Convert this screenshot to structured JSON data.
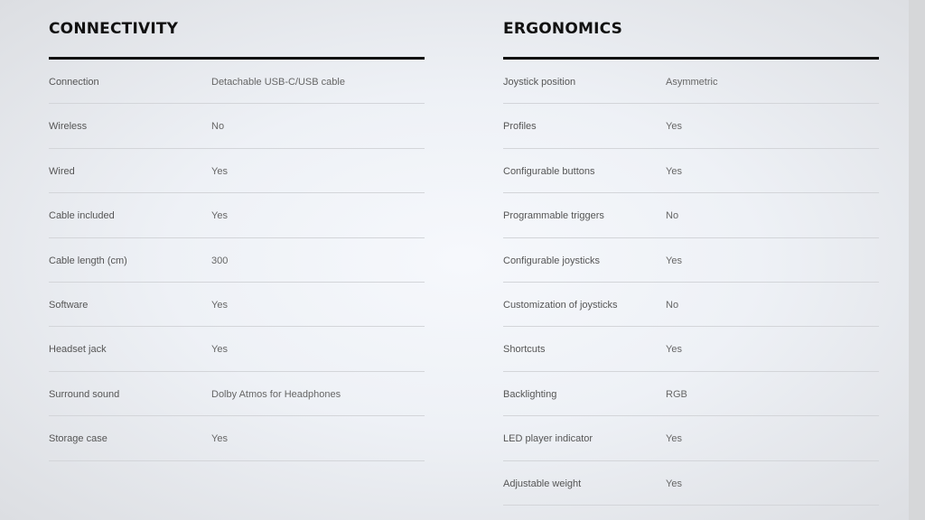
{
  "sections": [
    {
      "title": "CONNECTIVITY",
      "rows": [
        {
          "label": "Connection",
          "value": "Detachable USB-C/USB cable"
        },
        {
          "label": "Wireless",
          "value": "No"
        },
        {
          "label": "Wired",
          "value": "Yes"
        },
        {
          "label": "Cable included",
          "value": "Yes"
        },
        {
          "label": "Cable length (cm)",
          "value": "300"
        },
        {
          "label": "Software",
          "value": "Yes"
        },
        {
          "label": "Headset jack",
          "value": "Yes"
        },
        {
          "label": "Surround sound",
          "value": "Dolby Atmos for Headphones"
        },
        {
          "label": "Storage case",
          "value": "Yes"
        }
      ]
    },
    {
      "title": "ERGONOMICS",
      "rows": [
        {
          "label": "Joystick position",
          "value": "Asymmetric"
        },
        {
          "label": "Profiles",
          "value": "Yes"
        },
        {
          "label": "Configurable buttons",
          "value": "Yes"
        },
        {
          "label": "Programmable triggers",
          "value": "No"
        },
        {
          "label": "Configurable joysticks",
          "value": "Yes"
        },
        {
          "label": "Customization of joysticks",
          "value": "No"
        },
        {
          "label": "Shortcuts",
          "value": "Yes"
        },
        {
          "label": "Backlighting",
          "value": "RGB"
        },
        {
          "label": "LED player indicator",
          "value": "Yes"
        },
        {
          "label": "Adjustable weight",
          "value": "Yes"
        }
      ]
    }
  ]
}
